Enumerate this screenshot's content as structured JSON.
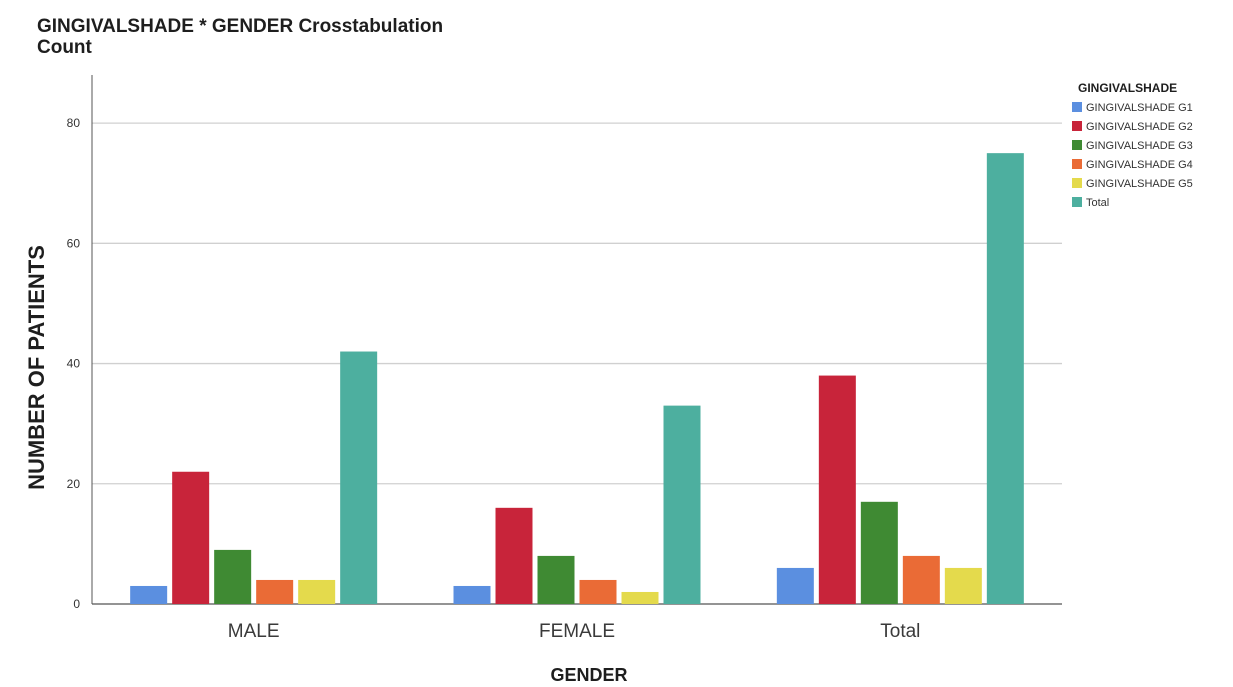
{
  "chart_data": {
    "type": "bar",
    "title": "GINGIVALSHADE * GENDER Crosstabulation",
    "subtitle": "Count",
    "xlabel": "GENDER",
    "ylabel": "NUMBER OF PATIENTS",
    "categories": [
      "MALE",
      "FEMALE",
      "Total"
    ],
    "ylim": [
      0,
      88
    ],
    "yticks": [
      0,
      20,
      40,
      60,
      80
    ],
    "grid": true,
    "legend_position": "top-right",
    "legend_title": "GINGIVALSHADE",
    "series": [
      {
        "name": "GINGIVALSHADE G1",
        "color": "#5b8fe0",
        "values": [
          3,
          3,
          6
        ]
      },
      {
        "name": "GINGIVALSHADE G2",
        "color": "#c8243a",
        "values": [
          22,
          16,
          38
        ]
      },
      {
        "name": "GINGIVALSHADE G3",
        "color": "#3f8a33",
        "values": [
          9,
          8,
          17
        ]
      },
      {
        "name": "GINGIVALSHADE G4",
        "color": "#ea6b36",
        "values": [
          4,
          4,
          8
        ]
      },
      {
        "name": "GINGIVALSHADE G5",
        "color": "#e4da4c",
        "values": [
          4,
          2,
          6
        ]
      },
      {
        "name": "Total",
        "color": "#4daf9f",
        "values": [
          42,
          33,
          75
        ]
      }
    ]
  }
}
